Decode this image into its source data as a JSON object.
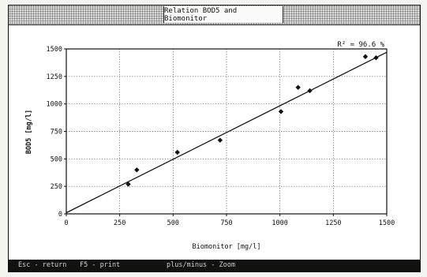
{
  "window": {
    "title": "Relation BOD5 and Biomonitor"
  },
  "statusbar": {
    "items": [
      "Esc - return",
      "F5 - print",
      "plus/minus - Zoom"
    ]
  },
  "colors": {
    "line": "#111111",
    "grid": "#444444",
    "marker": "#111111",
    "statusbar_bg": "#111111"
  },
  "chart_data": {
    "type": "scatter",
    "xlabel": "Biomonitor [mg/l]",
    "ylabel": "BOD5 [mg/l]",
    "annotation": "R² = 96.6 %",
    "xlim": [
      0,
      1500
    ],
    "ylim": [
      0,
      1500
    ],
    "xticks": [
      0,
      250,
      500,
      750,
      1000,
      1250,
      1500
    ],
    "yticks": [
      0,
      250,
      500,
      750,
      1000,
      1250,
      1500
    ],
    "grid": true,
    "points": [
      {
        "x": 290,
        "y": 270
      },
      {
        "x": 330,
        "y": 400
      },
      {
        "x": 520,
        "y": 560
      },
      {
        "x": 720,
        "y": 670
      },
      {
        "x": 1005,
        "y": 930
      },
      {
        "x": 1085,
        "y": 1150
      },
      {
        "x": 1140,
        "y": 1120
      },
      {
        "x": 1400,
        "y": 1430
      },
      {
        "x": 1450,
        "y": 1420
      }
    ],
    "fit_line": {
      "x": [
        0,
        1500
      ],
      "y": [
        10,
        1470
      ]
    }
  }
}
